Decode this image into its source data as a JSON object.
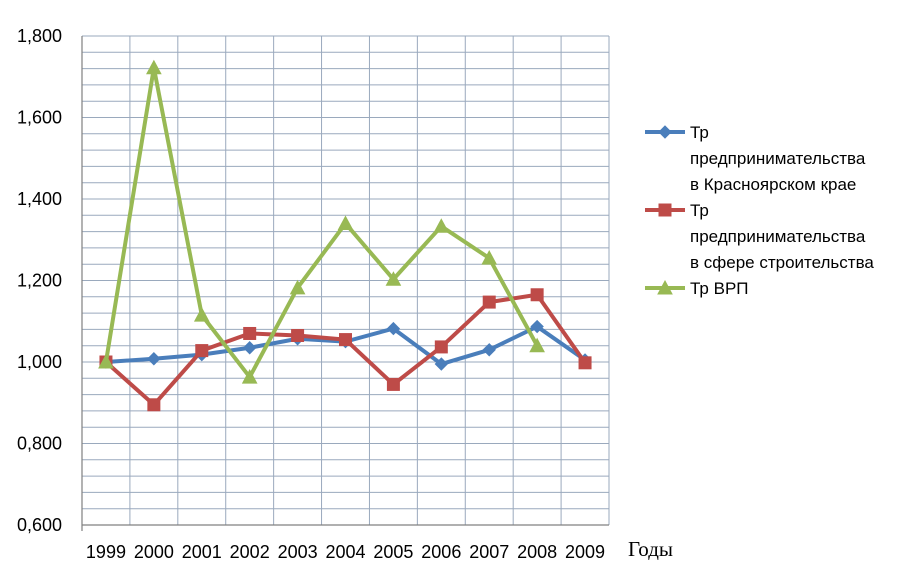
{
  "chart_data": {
    "type": "line",
    "categories": [
      "1999",
      "2000",
      "2001",
      "2002",
      "2003",
      "2004",
      "2005",
      "2006",
      "2007",
      "2008",
      "2009"
    ],
    "xlabel": "Годы",
    "ylim": [
      0.6,
      1.8
    ],
    "yticks": [
      "0,600",
      "0,800",
      "1,000",
      "1,200",
      "1,400",
      "1,600",
      "1,800"
    ],
    "grid": true,
    "legend_position": "right",
    "series": [
      {
        "name_lines": [
          "Тр",
          "предпринимательства",
          "в Красноярском крае"
        ],
        "color": "#4a7ebb",
        "marker": "diamond",
        "values": [
          1.0,
          1.008,
          1.018,
          1.035,
          1.057,
          1.05,
          1.082,
          0.995,
          1.03,
          1.087,
          1.005
        ]
      },
      {
        "name_lines": [
          "Тр",
          "предпринимательства",
          "в сфере строительства"
        ],
        "color": "#be4b48",
        "marker": "square",
        "values": [
          1.0,
          0.895,
          1.028,
          1.07,
          1.065,
          1.055,
          0.945,
          1.037,
          1.147,
          1.165,
          0.998
        ]
      },
      {
        "name_lines": [
          "Тр ВРП"
        ],
        "color": "#98b954",
        "marker": "triangle",
        "values": [
          1.0,
          1.722,
          1.115,
          0.963,
          1.182,
          1.34,
          1.203,
          1.333,
          1.255,
          1.04,
          null
        ]
      }
    ]
  }
}
